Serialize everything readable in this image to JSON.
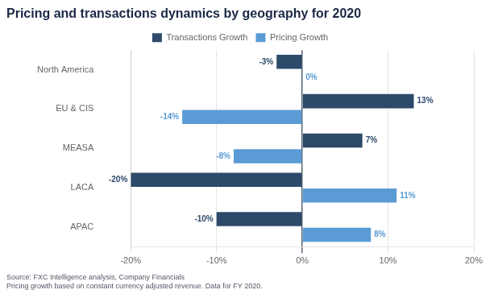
{
  "chart_data": {
    "type": "bar",
    "orientation": "horizontal",
    "title": "Pricing and transactions dynamics by geography for 2020",
    "annotations": [
      "Source: FXC Intelligence analysis, Company Financials\nPricing growth based on constant currency adjusted revenue. Data for FY 2020."
    ],
    "categories": [
      "APAC",
      "LACA",
      "MEASA",
      "EU & CIS",
      "North America"
    ],
    "series": [
      {
        "name": "Transactions Growth",
        "color": "#2d4a6b",
        "values": [
          -10,
          -20,
          7,
          13,
          -3
        ],
        "value_labels": [
          "-10%",
          "-20%",
          "7%",
          "13%",
          "-3%"
        ]
      },
      {
        "name": "Pricing Growth",
        "color": "#5b9bd5",
        "values": [
          8,
          11,
          -8,
          -14,
          0
        ],
        "value_labels": [
          "8%",
          "11%",
          "-8%",
          "-14%",
          "0%"
        ]
      }
    ],
    "xlim": [
      -20,
      20
    ],
    "xticks": [
      {
        "value": -20,
        "label": "-20%"
      },
      {
        "value": -10,
        "label": "-10%"
      },
      {
        "value": 0,
        "label": "0%"
      },
      {
        "value": 10,
        "label": "10%"
      },
      {
        "value": 20,
        "label": "20%"
      }
    ],
    "grid": true,
    "legend": "top",
    "data_labels": true
  }
}
